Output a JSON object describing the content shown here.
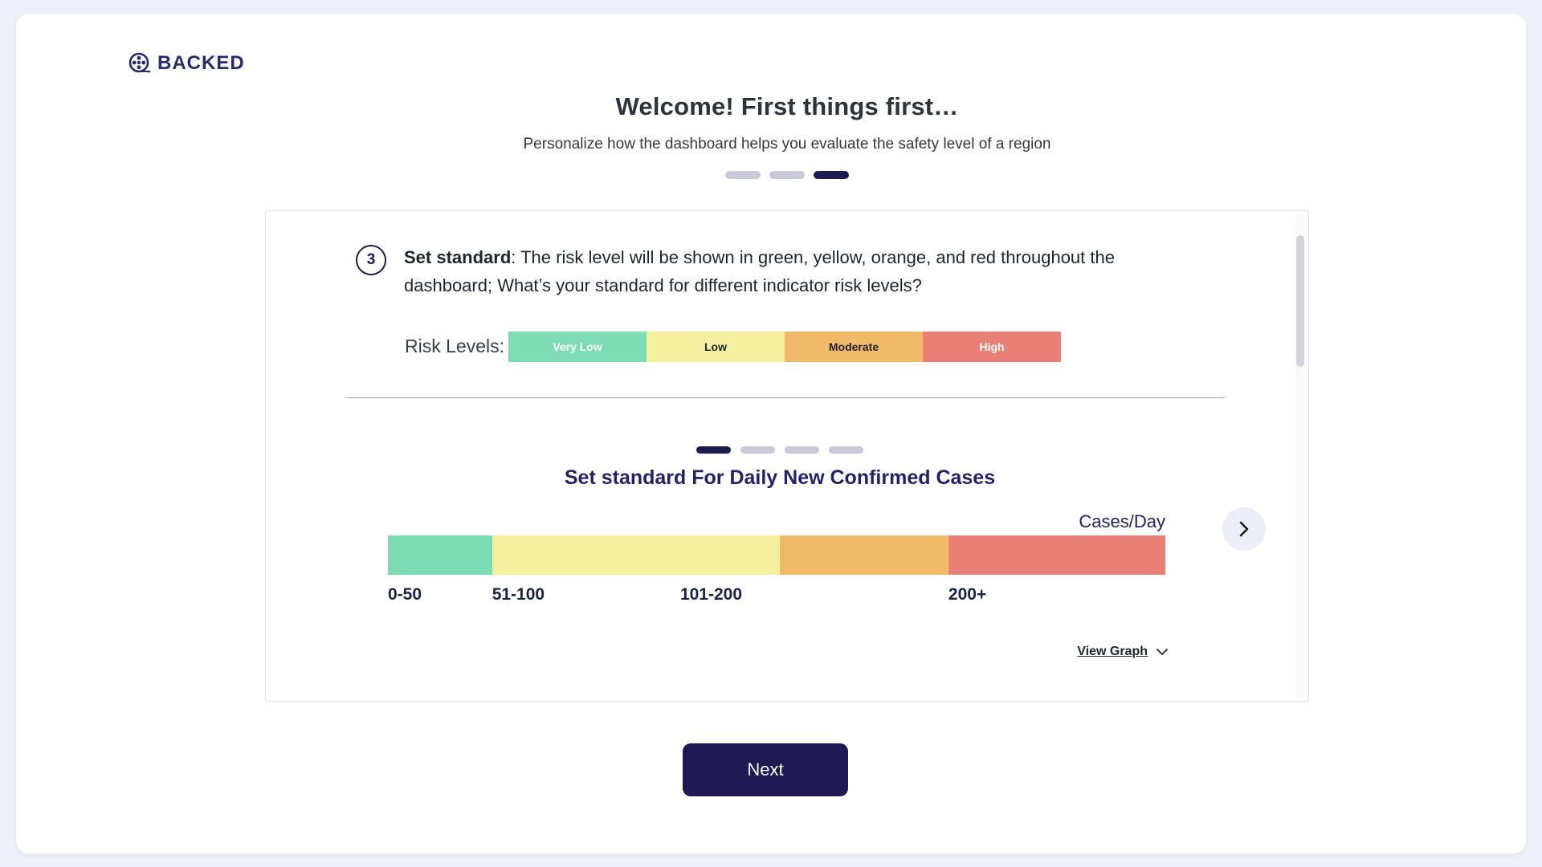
{
  "page": {
    "background": "#edf0f8",
    "panel_background": "#ffffff"
  },
  "brand": {
    "name": "BACKED",
    "color": "#2b2a66"
  },
  "header": {
    "title": "Welcome! First things first…",
    "subtitle": "Personalize how the dashboard helps you evaluate the safety level of a region"
  },
  "onboarding_progress": {
    "pills": [
      "inactive",
      "inactive",
      "active"
    ]
  },
  "step": {
    "number": "3",
    "label_bold": "Set standard",
    "label_rest": ": The risk level will be shown in green, yellow, orange, and red throughout the dashboard; What’s your standard for different indicator risk levels?"
  },
  "risk_levels": {
    "label": "Risk Levels:",
    "segments": [
      {
        "label": "Very Low",
        "color": "#7ddcb3",
        "text_color": "#ffffff"
      },
      {
        "label": "Low",
        "color": "#f5f0a0",
        "text_color": "#23232b"
      },
      {
        "label": "Moderate",
        "color": "#f0ba68",
        "text_color": "#23232b"
      },
      {
        "label": "High",
        "color": "#e98078",
        "text_color": "#ffffff"
      }
    ]
  },
  "standard_carousel": {
    "pills": [
      "active",
      "inactive",
      "inactive",
      "inactive"
    ],
    "title": "Set standard For Daily New Confirmed Cases",
    "unit_label": "Cases/Day",
    "bar_segments": [
      {
        "range": "0-50",
        "color": "#7ddcb3",
        "width_pct": 13.4,
        "label_left_pct": 0
      },
      {
        "range": "51-100",
        "color": "#f5f0a0",
        "width_pct": 37.0,
        "label_left_pct": 13.4
      },
      {
        "range": "101-200",
        "color": "#f0ba68",
        "width_pct": 21.7,
        "label_left_pct": 37.6
      },
      {
        "range": "200+",
        "color": "#e98078",
        "width_pct": 27.9,
        "label_left_pct": 72.1
      }
    ],
    "view_graph_label": "View Graph"
  },
  "next_button": {
    "label": "Next",
    "background": "#201a54"
  }
}
